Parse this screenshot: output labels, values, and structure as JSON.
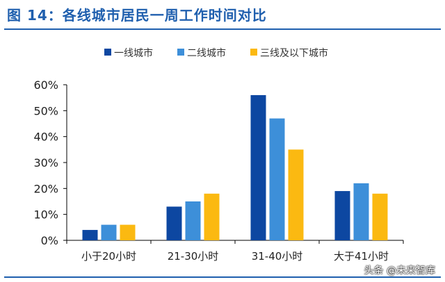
{
  "header": {
    "title": "图 14：各线城市居民一周工作时间对比"
  },
  "watermark": "头条 @未来智库",
  "chart_data": {
    "type": "bar",
    "categories": [
      "小于20小时",
      "21-30小时",
      "31-40小时",
      "大于41小时"
    ],
    "series": [
      {
        "name": "一线城市",
        "color": "#0d47a1",
        "values": [
          0.04,
          0.13,
          0.56,
          0.19
        ]
      },
      {
        "name": "二线城市",
        "color": "#3d8fd9",
        "values": [
          0.06,
          0.15,
          0.47,
          0.22
        ]
      },
      {
        "name": "三线及以下城市",
        "color": "#fbb911",
        "values": [
          0.06,
          0.18,
          0.35,
          0.18
        ]
      }
    ],
    "ylim": [
      0,
      0.6
    ],
    "yticks": [
      0,
      0.1,
      0.2,
      0.3,
      0.4,
      0.5,
      0.6
    ],
    "ytick_labels": [
      "0%",
      "10%",
      "20%",
      "30%",
      "40%",
      "50%",
      "60%"
    ],
    "title": "",
    "xlabel": "",
    "ylabel": "",
    "legend_position": "top-center",
    "grid": false
  }
}
